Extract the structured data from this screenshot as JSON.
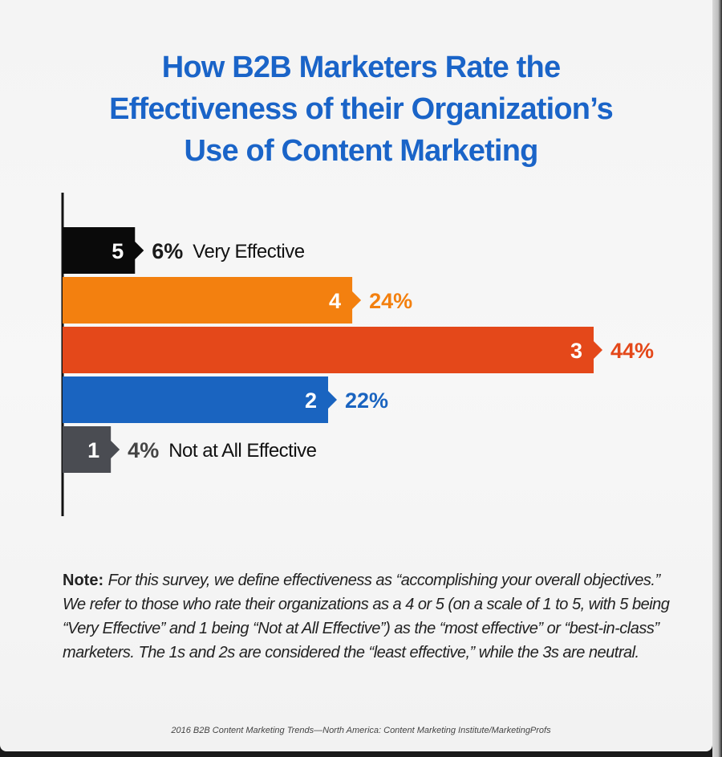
{
  "title_lines": [
    "How B2B Marketers Rate the",
    "Effectiveness of their Organization’s",
    "Use of Content Marketing"
  ],
  "note": {
    "label": "Note:",
    "text": "For this survey, we define effectiveness as “accomplishing your overall objectives.” We refer to those who rate their organizations as a 4 or 5 (on a scale of 1 to 5, with 5 being “Very Effective” and 1 being “Not at All Effective”) as the “most effective” or “best-in-class” marketers. The 1s and 2s are considered the “least effective,” while the 3s are neutral."
  },
  "source": "2016 B2B Content Marketing Trends—North America: Content Marketing Institute/MarketingProfs",
  "chart_data": {
    "type": "bar",
    "orientation": "horizontal",
    "categories": [
      "5",
      "4",
      "3",
      "2",
      "1"
    ],
    "values": [
      6,
      24,
      44,
      22,
      4
    ],
    "value_labels": [
      "6%",
      "24%",
      "44%",
      "22%",
      "4%"
    ],
    "annotations": [
      "Very Effective",
      "",
      "",
      "",
      "Not at All Effective"
    ],
    "colors": [
      "#0a0a0a",
      "#f3800f",
      "#e4481a",
      "#1a64c0",
      "#4a4c52"
    ],
    "value_label_colors": [
      "#1a1a1a",
      "#f3800f",
      "#e4481a",
      "#1a64c0",
      "#444444"
    ],
    "xlim": [
      0,
      44
    ],
    "grid": false
  }
}
